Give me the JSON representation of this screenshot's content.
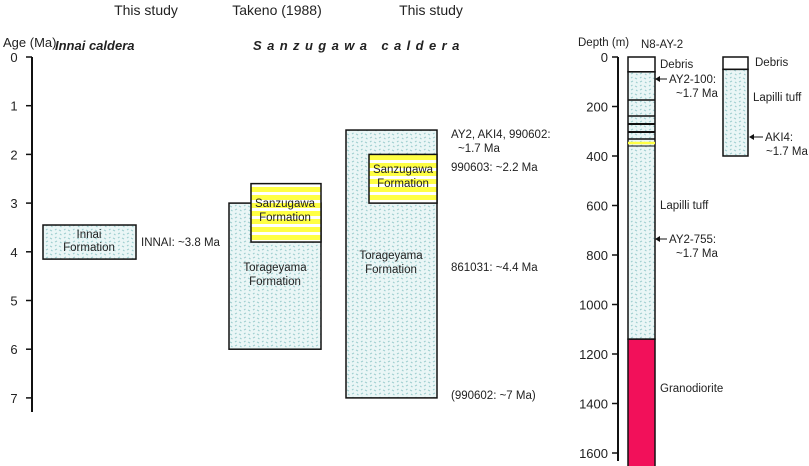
{
  "headers": {
    "col1": "This study",
    "col2": "Takeno (1988)",
    "col3": "This study"
  },
  "calderas": {
    "innai": "Innai caldera",
    "sanzugawa": "Sanzugawa caldera"
  },
  "age_axis": {
    "label": "Age (Ma)",
    "ticks": [
      "0",
      "1",
      "2",
      "3",
      "4",
      "5",
      "6",
      "7"
    ]
  },
  "formations": {
    "innai": {
      "line1": "Innai",
      "line2": "Formation",
      "top": 3.45,
      "bottom": 4.15
    },
    "takeno_sanzugawa": {
      "line1": "Sanzugawa",
      "line2": "Formation",
      "top": 2.6,
      "bottom": 3.8
    },
    "takeno_torageyama": {
      "line1": "Torageyama",
      "line2": "Formation",
      "top": 3.0,
      "bottom": 6.0
    },
    "this_torageyama": {
      "line1": "Torageyama",
      "line2": "Formation",
      "top": 1.5,
      "bottom": 7.0
    },
    "this_sanzugawa": {
      "line1": "Sanzugawa",
      "line2": "Formation",
      "top": 2.0,
      "bottom": 3.0
    }
  },
  "age_labels": {
    "innai": "INNAI: ~3.8 Ma",
    "ay2_line1": "AY2, AKI4, 990602:",
    "ay2_line2": "~1.7 Ma",
    "s990603": "990603: ~2.2 Ma",
    "s861031": "861031: ~4.4 Ma",
    "s990602": "(990602: ~7 Ma)"
  },
  "depth_axis": {
    "label": "Depth (m)",
    "ticks": [
      "0",
      "200",
      "400",
      "600",
      "800",
      "1000",
      "1200",
      "1400",
      "1600"
    ]
  },
  "well": {
    "name": "N8-AY-2",
    "debris_bottom": 60,
    "granodiorite_top": 1140,
    "total_depth": 1660,
    "debris": "Debris",
    "lapilli": "Lapilli tuff",
    "granodiorite": "Granodiorite",
    "sample1_line1": "AY2-100:",
    "sample1_line2": "~1.7 Ma",
    "sample2_line1": "AY2-755:",
    "sample2_line2": "~1.7 Ma"
  },
  "outcrop": {
    "debris": "Debris",
    "lapilli": "Lapilli tuff",
    "debris_bottom": 50,
    "total_depth": 400,
    "sample_line1": "AKI4:",
    "sample_line2": "~1.7 Ma"
  },
  "colors": {
    "tuff_fill": "#eaf6f6",
    "tuff_dots": "#9fcfd0",
    "sanzugawa_yellow": "#ffff44",
    "granodiorite": "#f2105a"
  }
}
